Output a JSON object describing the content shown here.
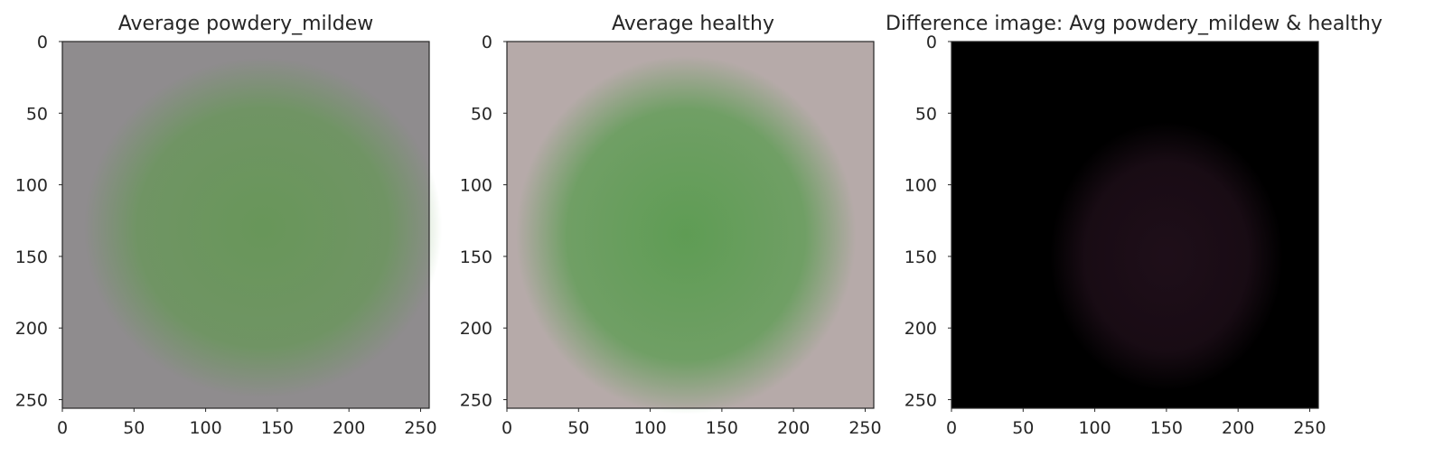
{
  "chart_data": [
    {
      "type": "heatmap",
      "title": "Average powdery_mildew",
      "xlabel": "",
      "ylabel": "",
      "xlim": [
        0,
        256
      ],
      "ylim": [
        256,
        0
      ],
      "xticks": [
        "0",
        "50",
        "100",
        "150",
        "200",
        "250"
      ],
      "yticks": [
        "0",
        "50",
        "100",
        "150",
        "200",
        "250"
      ],
      "image": {
        "background": "#8f8c8e",
        "leaf_color": "#5b9a48",
        "leaf_center": [
          140,
          130
        ],
        "leaf_radius": [
          100,
          95
        ],
        "leaf_strength": 0.75
      },
      "grid": false
    },
    {
      "type": "heatmap",
      "title": "Average healthy",
      "xlabel": "",
      "ylabel": "",
      "xlim": [
        0,
        256
      ],
      "ylim": [
        256,
        0
      ],
      "xticks": [
        "0",
        "50",
        "100",
        "150",
        "200",
        "250"
      ],
      "yticks": [
        "0",
        "50",
        "100",
        "150",
        "200",
        "250"
      ],
      "image": {
        "background": "#b6aaa9",
        "leaf_color": "#4f9a45",
        "leaf_center": [
          125,
          135
        ],
        "leaf_radius": [
          95,
          100
        ],
        "leaf_strength": 0.85
      },
      "grid": false
    },
    {
      "type": "heatmap",
      "title": "Difference image: Avg powdery_mildew & healthy",
      "xlabel": "",
      "ylabel": "",
      "xlim": [
        0,
        256
      ],
      "ylim": [
        256,
        0
      ],
      "xticks": [
        "0",
        "50",
        "100",
        "150",
        "200",
        "250"
      ],
      "yticks": [
        "0",
        "50",
        "100",
        "150",
        "200",
        "250"
      ],
      "image": {
        "background": "#000000",
        "leaf_color": "#22101c",
        "leaf_center": [
          150,
          150
        ],
        "leaf_radius": [
          65,
          75
        ],
        "leaf_strength": 0.9
      },
      "grid": false
    }
  ]
}
